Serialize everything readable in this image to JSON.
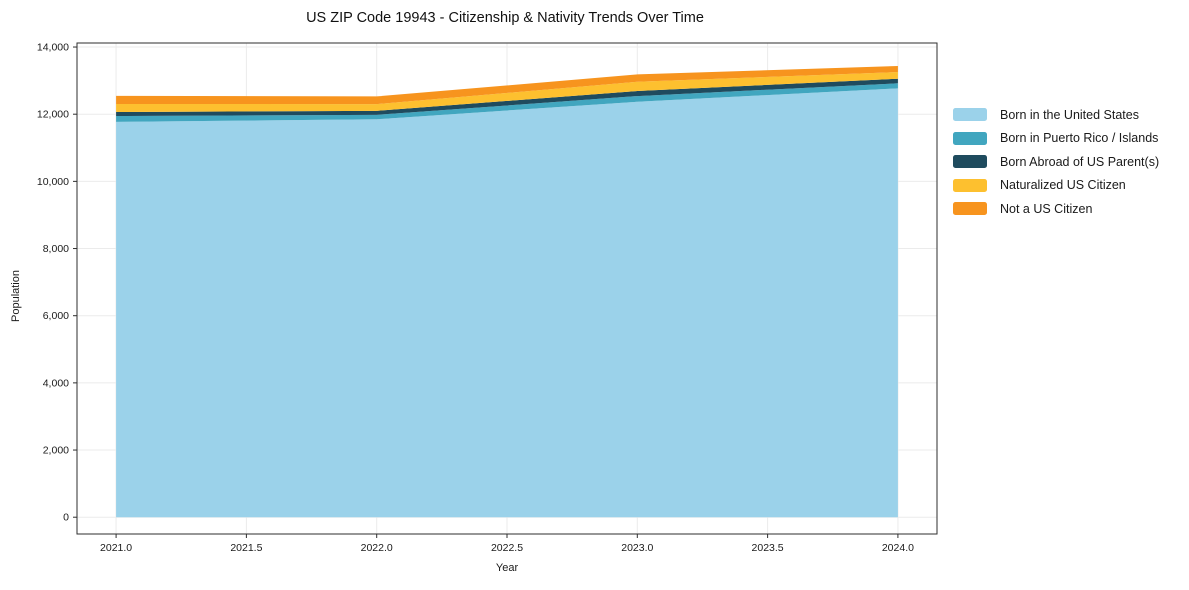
{
  "chart_data": {
    "type": "area",
    "stacked": true,
    "title": "US ZIP Code 19943 - Citizenship & Nativity Trends Over Time",
    "xlabel": "Year",
    "ylabel": "Population",
    "x": [
      2021,
      2022,
      2023,
      2024
    ],
    "series": [
      {
        "name": "Born in the United States",
        "color": "#9bd2ea",
        "values": [
          11770,
          11850,
          12370,
          12770
        ]
      },
      {
        "name": "Born in Puerto Rico / Islands",
        "color": "#41a6bf",
        "values": [
          175,
          130,
          170,
          150
        ]
      },
      {
        "name": "Born Abroad of US Parent(s)",
        "color": "#1f4b5e",
        "values": [
          120,
          120,
          150,
          135
        ]
      },
      {
        "name": "Naturalized US Citizen",
        "color": "#fdc02f",
        "values": [
          240,
          200,
          275,
          200
        ]
      },
      {
        "name": "Not a US Citizen",
        "color": "#f7941e",
        "values": [
          240,
          230,
          220,
          180
        ]
      }
    ],
    "xticks": [
      2021.0,
      2021.5,
      2022.0,
      2022.5,
      2023.0,
      2023.5,
      2024.0
    ],
    "xtick_labels": [
      "2021.0",
      "2021.5",
      "2022.0",
      "2022.5",
      "2023.0",
      "2023.5",
      "2024.0"
    ],
    "yticks": [
      0,
      2000,
      4000,
      6000,
      8000,
      10000,
      12000,
      14000
    ],
    "ytick_labels": [
      "0",
      "2,000",
      "4,000",
      "6,000",
      "8,000",
      "10,000",
      "12,000",
      "14,000"
    ],
    "xlim": [
      2020.85,
      2024.15
    ],
    "ylim": [
      -500,
      14120
    ],
    "grid": true,
    "legend_position": "right",
    "colors": {
      "grid": "#ebebeb",
      "spine": "#2e2e2e",
      "tick_label": "#1a1a1a",
      "background": "#ffffff"
    }
  }
}
